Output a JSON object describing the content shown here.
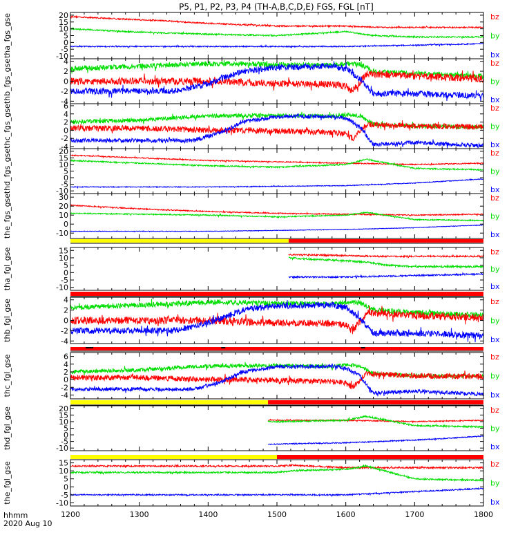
{
  "title": "P5, P1, P2, P3, P4 (TH-A,B,C,D,E) FGS, FGL [nT]",
  "colors": {
    "bz": "#ff0000",
    "by": "#00dd00",
    "bx": "#0000ff",
    "bar_yellow": "#ffff00",
    "bar_red": "#ff0000",
    "bar_black": "#000000"
  },
  "chart_data": {
    "type": "line",
    "title": "P5, P1, P2, P3, P4 (TH-A,B,C,D,E) FGS, FGL [nT]",
    "xlabel": "hhmm",
    "date_label": "2020 Aug 10",
    "x_ticks": [
      "1200",
      "1300",
      "1400",
      "1500",
      "1600",
      "1700",
      "1800"
    ],
    "xlim": [
      1200,
      1800
    ],
    "panels": [
      {
        "ylabel": "tha_fgs_gse",
        "ylim": [
          -12,
          22
        ],
        "y_ticks": [
          20,
          15,
          10,
          5,
          0,
          -5,
          -10
        ],
        "legend": [
          "bz",
          "by",
          "bx"
        ],
        "series": [
          {
            "name": "bz",
            "noise": 0.5,
            "x": [
              1200,
              1260,
              1330,
              1400,
              1450,
              1500,
              1600,
              1650,
              1700,
              1800
            ],
            "y": [
              19,
              17.5,
              16,
              14,
              13,
              12,
              12,
              11,
              11,
              11
            ]
          },
          {
            "name": "by",
            "noise": 0.5,
            "x": [
              1200,
              1300,
              1400,
              1500,
              1600,
              1640,
              1700,
              1800
            ],
            "y": [
              10,
              7.5,
              6,
              5,
              8,
              5,
              4,
              4
            ]
          },
          {
            "name": "bx",
            "noise": 0.4,
            "x": [
              1200,
              1300,
              1400,
              1500,
              1600,
              1650,
              1700,
              1800
            ],
            "y": [
              -3,
              -3,
              -3,
              -3,
              -3,
              -2.5,
              -2,
              -1
            ]
          }
        ]
      },
      {
        "ylabel": "thb_fgs_gse",
        "ylim": [
          -4.5,
          4.5
        ],
        "y_ticks": [
          4,
          2,
          0,
          -2,
          -4
        ],
        "legend": [
          "bz",
          "by",
          "bx"
        ],
        "series": [
          {
            "name": "by",
            "noise": 0.5,
            "x": [
              1200,
              1300,
              1400,
              1450,
              1500,
              1580,
              1600,
              1620,
              1640,
              1700,
              1800
            ],
            "y": [
              2.5,
              3,
              3.5,
              3.5,
              3.3,
              3.2,
              3.5,
              3.5,
              2,
              1.5,
              1
            ]
          },
          {
            "name": "bz",
            "noise": 0.7,
            "x": [
              1200,
              1300,
              1400,
              1450,
              1500,
              1580,
              1600,
              1610,
              1630,
              1700,
              1800
            ],
            "y": [
              0,
              0,
              0,
              -0.2,
              -0.5,
              -0.6,
              -1,
              -2,
              1.5,
              1,
              0.5
            ]
          },
          {
            "name": "bx",
            "noise": 0.6,
            "x": [
              1200,
              1300,
              1350,
              1400,
              1450,
              1500,
              1580,
              1600,
              1620,
              1640,
              1700,
              1800
            ],
            "y": [
              -2,
              -2,
              -2,
              -0.5,
              2,
              2.8,
              3,
              2.5,
              0.5,
              -2.5,
              -2.5,
              -3
            ]
          }
        ]
      },
      {
        "ylabel": "thc_fgs_gse",
        "ylim": [
          -4.5,
          6.5
        ],
        "y_ticks": [
          6,
          4,
          2,
          0,
          -2,
          -4
        ],
        "legend": [
          "bz",
          "by",
          "bx"
        ],
        "series": [
          {
            "name": "by",
            "noise": 0.5,
            "x": [
              1200,
              1300,
              1400,
              1450,
              1500,
              1580,
              1600,
              1620,
              1640,
              1700,
              1800
            ],
            "y": [
              2,
              2.5,
              3.5,
              3.6,
              3.6,
              3.4,
              3.8,
              3.6,
              1.5,
              1,
              0.8
            ]
          },
          {
            "name": "bz",
            "noise": 0.7,
            "x": [
              1200,
              1300,
              1400,
              1450,
              1500,
              1580,
              1600,
              1610,
              1630,
              1700,
              1800
            ],
            "y": [
              0.5,
              0.5,
              0,
              0,
              -0.2,
              -0.5,
              -1,
              -2,
              1.5,
              1,
              0.8
            ]
          },
          {
            "name": "bx",
            "noise": 0.5,
            "x": [
              1200,
              1300,
              1380,
              1420,
              1450,
              1500,
              1580,
              1600,
              1620,
              1640,
              1700,
              1800
            ],
            "y": [
              -2.5,
              -2.5,
              -2.5,
              -0.5,
              2,
              3.3,
              3.4,
              3,
              1,
              -3.5,
              -3,
              -3.8
            ]
          }
        ]
      },
      {
        "ylabel": "thd_fgs_gse",
        "ylim": [
          -12,
          22
        ],
        "y_ticks": [
          20,
          15,
          10,
          5,
          0,
          -5,
          -10
        ],
        "legend": [
          "bz",
          "by",
          "bx"
        ],
        "series": [
          {
            "name": "bz",
            "noise": 0.4,
            "x": [
              1200,
              1300,
              1400,
              1500,
              1600,
              1700,
              1800
            ],
            "y": [
              17,
              15,
              13,
              12,
              11,
              10,
              11
            ]
          },
          {
            "name": "by",
            "noise": 0.5,
            "x": [
              1200,
              1300,
              1400,
              1500,
              1600,
              1630,
              1700,
              1800
            ],
            "y": [
              13,
              11,
              9,
              8,
              10,
              14,
              7,
              6
            ]
          },
          {
            "name": "bx",
            "noise": 0.3,
            "x": [
              1200,
              1300,
              1400,
              1500,
              1600,
              1700,
              1800
            ],
            "y": [
              -7,
              -7,
              -7,
              -6.5,
              -6,
              -4,
              -1
            ]
          }
        ]
      },
      {
        "ylabel": "the_fgs_gse",
        "ylim": [
          -16,
          34
        ],
        "y_ticks": [
          30,
          20,
          10,
          0,
          -10
        ],
        "legend": [
          "bz",
          "by",
          "bx"
        ],
        "series": [
          {
            "name": "bz",
            "noise": 0.6,
            "x": [
              1200,
              1300,
              1400,
              1500,
              1600,
              1700,
              1800
            ],
            "y": [
              21,
              17,
              14,
              12,
              11,
              10,
              11
            ]
          },
          {
            "name": "by",
            "noise": 0.6,
            "x": [
              1200,
              1300,
              1400,
              1500,
              1600,
              1630,
              1700,
              1800
            ],
            "y": [
              12,
              11,
              10,
              8,
              10,
              13,
              5,
              4
            ]
          },
          {
            "name": "bx",
            "noise": 0.3,
            "x": [
              1200,
              1300,
              1400,
              1500,
              1600,
              1700,
              1800
            ],
            "y": [
              -8,
              -8,
              -8,
              -7,
              -6,
              -4,
              -1
            ]
          }
        ]
      },
      {
        "ylabel": "tha_fgl_gse",
        "ylim": [
          -12,
          17
        ],
        "y_ticks": [
          15,
          10,
          5,
          0,
          -5,
          -10
        ],
        "legend": [
          "bz",
          "by",
          "bx"
        ],
        "series": [
          {
            "name": "bz",
            "noise": 0.5,
            "x": [
              1517,
              1550,
              1600,
              1650,
              1700,
              1800
            ],
            "y": [
              12,
              12,
              11.5,
              11,
              11,
              11
            ]
          },
          {
            "name": "by",
            "noise": 0.6,
            "x": [
              1517,
              1550,
              1600,
              1630,
              1660,
              1700,
              1800
            ],
            "y": [
              10,
              9,
              8,
              7,
              5,
              4,
              4
            ]
          },
          {
            "name": "bx",
            "noise": 0.5,
            "x": [
              1517,
              1600,
              1650,
              1700,
              1800
            ],
            "y": [
              -3,
              -3,
              -2.5,
              -2,
              -1
            ]
          }
        ]
      },
      {
        "ylabel": "thb_fgl_gse",
        "ylim": [
          -4.5,
          4.5
        ],
        "y_ticks": [
          4,
          2,
          0,
          -2,
          -4
        ],
        "legend": [
          "bz",
          "by",
          "bx"
        ],
        "series": [
          {
            "name": "by",
            "noise": 0.5,
            "x": [
              1200,
              1300,
              1400,
              1450,
              1500,
              1580,
              1600,
              1620,
              1640,
              1700,
              1800
            ],
            "y": [
              2.5,
              3,
              3.5,
              3.5,
              3.3,
              3.2,
              3.5,
              3.5,
              2,
              1.5,
              1
            ]
          },
          {
            "name": "bz",
            "noise": 0.7,
            "x": [
              1200,
              1300,
              1400,
              1450,
              1500,
              1580,
              1600,
              1610,
              1630,
              1700,
              1800
            ],
            "y": [
              0,
              0,
              0,
              -0.2,
              -0.5,
              -0.6,
              -1,
              -2,
              1.5,
              1,
              0.5
            ]
          },
          {
            "name": "bx",
            "noise": 0.6,
            "x": [
              1200,
              1300,
              1350,
              1400,
              1450,
              1500,
              1580,
              1600,
              1620,
              1640,
              1700,
              1800
            ],
            "y": [
              -2,
              -2,
              -2,
              -0.5,
              2,
              2.8,
              3,
              2.5,
              0.5,
              -2.5,
              -2.5,
              -3
            ]
          }
        ]
      },
      {
        "ylabel": "thc_fgl_gse",
        "ylim": [
          -5,
          7
        ],
        "y_ticks": [
          6,
          4,
          2,
          0,
          -2,
          -4
        ],
        "legend": [
          "bz",
          "by",
          "bx"
        ],
        "series": [
          {
            "name": "by",
            "noise": 0.5,
            "x": [
              1200,
              1300,
              1400,
              1450,
              1500,
              1580,
              1600,
              1620,
              1640,
              1700,
              1800
            ],
            "y": [
              2,
              2.5,
              3.5,
              3.6,
              3.6,
              3.4,
              3.8,
              3.6,
              1.5,
              1,
              0.8
            ]
          },
          {
            "name": "bz",
            "noise": 0.7,
            "x": [
              1200,
              1300,
              1400,
              1450,
              1500,
              1580,
              1600,
              1610,
              1630,
              1700,
              1800
            ],
            "y": [
              0.5,
              0.5,
              0,
              0,
              -0.2,
              -0.5,
              -1,
              -2,
              1.5,
              1,
              0.8
            ]
          },
          {
            "name": "bx",
            "noise": 0.5,
            "x": [
              1200,
              1300,
              1380,
              1420,
              1450,
              1500,
              1580,
              1600,
              1620,
              1640,
              1700,
              1800
            ],
            "y": [
              -2.5,
              -2.5,
              -2.5,
              -0.5,
              2,
              3.3,
              3.4,
              3,
              1,
              -3.5,
              -3,
              -3.8
            ]
          }
        ]
      },
      {
        "ylabel": "thd_fgl_gse",
        "ylim": [
          -12,
          22
        ],
        "y_ticks": [
          20,
          15,
          10,
          5,
          0,
          -5,
          -10
        ],
        "legend": [
          "bz",
          "by",
          "bx"
        ],
        "series": [
          {
            "name": "bz",
            "noise": 0.4,
            "x": [
              1487,
              1500,
              1600,
              1700,
              1800
            ],
            "y": [
              11,
              11,
              11,
              10,
              11
            ]
          },
          {
            "name": "by",
            "noise": 0.6,
            "x": [
              1487,
              1500,
              1600,
              1630,
              1700,
              1800
            ],
            "y": [
              10,
              10,
              11,
              14,
              7,
              6
            ]
          },
          {
            "name": "bx",
            "noise": 0.4,
            "x": [
              1487,
              1500,
              1600,
              1700,
              1800
            ],
            "y": [
              -7,
              -7,
              -6,
              -4,
              -1
            ]
          }
        ]
      },
      {
        "ylabel": "the_fgl_gse",
        "ylim": [
          -12,
          17
        ],
        "y_ticks": [
          15,
          10,
          5,
          0,
          -5,
          -10
        ],
        "legend": [
          "bz",
          "by",
          "bx"
        ],
        "series": [
          {
            "name": "bz",
            "noise": 0.5,
            "x": [
              1200,
              1500,
              1520,
              1600,
              1700,
              1800
            ],
            "y": [
              13,
              13,
              13.5,
              12,
              12,
              12
            ]
          },
          {
            "name": "by",
            "noise": 0.5,
            "x": [
              1200,
              1500,
              1520,
              1600,
              1630,
              1700,
              1800
            ],
            "y": [
              9,
              9,
              10,
              11,
              13,
              5,
              4
            ]
          },
          {
            "name": "bx",
            "noise": 0.4,
            "x": [
              1200,
              1500,
              1600,
              1700,
              1800
            ],
            "y": [
              -5,
              -5,
              -5,
              -3,
              -1
            ]
          }
        ]
      }
    ],
    "status_bars": [
      {
        "after_panel": 4,
        "segments": [
          {
            "from": 1200,
            "to": 1517,
            "color": "yellow"
          },
          {
            "from": 1517,
            "to": 1800,
            "color": "red"
          }
        ]
      },
      {
        "after_panel": 5,
        "segments": [
          {
            "from": 1200,
            "to": 1800,
            "color": "red"
          }
        ]
      },
      {
        "after_panel": 6,
        "segments": [
          {
            "from": 1200,
            "to": 1800,
            "color": "red"
          }
        ],
        "black_ticks": [
          1225,
          1230,
          1422,
          1625
        ]
      },
      {
        "after_panel": 7,
        "segments": [
          {
            "from": 1200,
            "to": 1487,
            "color": "yellow"
          },
          {
            "from": 1487,
            "to": 1800,
            "color": "red"
          }
        ]
      },
      {
        "after_panel": 8,
        "segments": [
          {
            "from": 1200,
            "to": 1500,
            "color": "yellow"
          },
          {
            "from": 1500,
            "to": 1800,
            "color": "red"
          }
        ]
      }
    ]
  }
}
